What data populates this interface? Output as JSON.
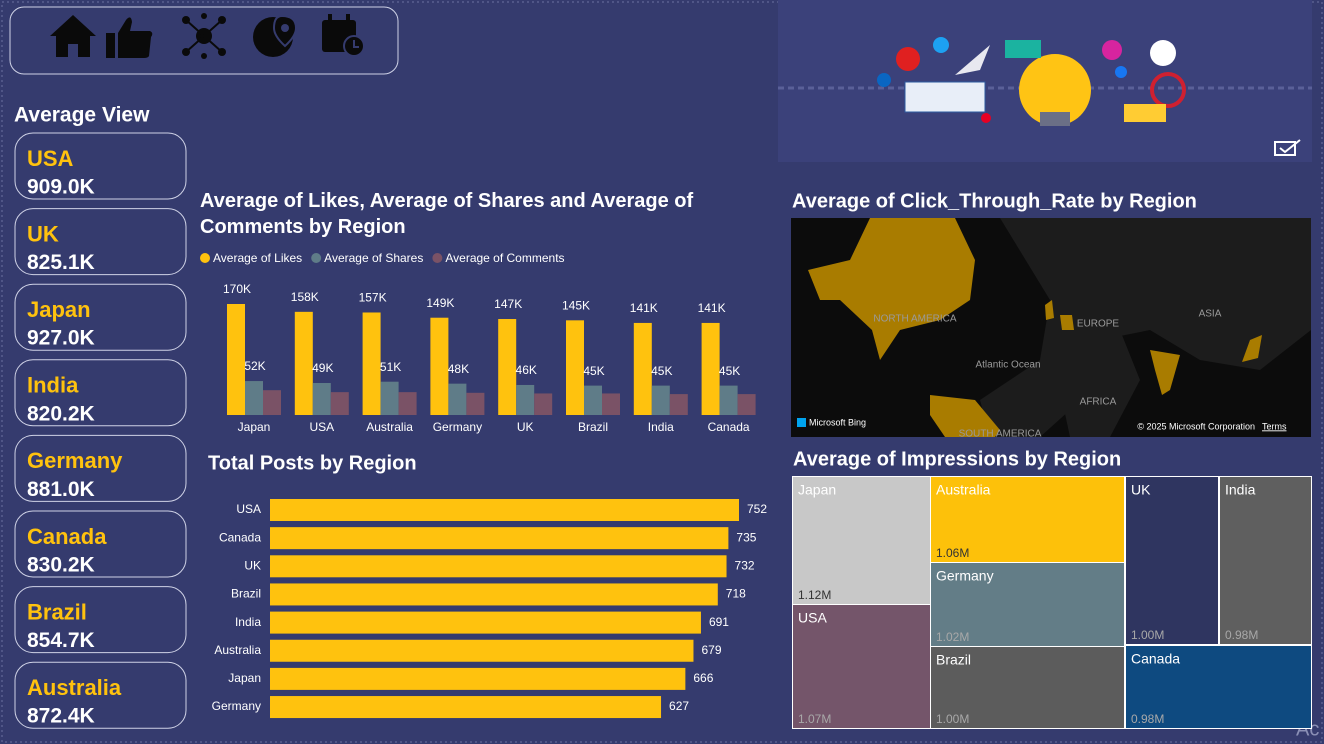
{
  "cards": {
    "title": "Average View",
    "items": [
      {
        "label": "USA",
        "value": "909.0K"
      },
      {
        "label": "UK",
        "value": "825.1K"
      },
      {
        "label": "Japan",
        "value": "927.0K"
      },
      {
        "label": "India",
        "value": "820.2K"
      },
      {
        "label": "Germany",
        "value": "881.0K"
      },
      {
        "label": "Canada",
        "value": "830.2K"
      },
      {
        "label": "Brazil",
        "value": "854.7K"
      },
      {
        "label": "Australia",
        "value": "872.4K"
      }
    ]
  },
  "chart_data": [
    {
      "type": "bar",
      "title": "Average of Likes, Average of Shares and Average of Comments by Region",
      "categories": [
        "Japan",
        "USA",
        "Australia",
        "Germany",
        "UK",
        "Brazil",
        "India",
        "Canada"
      ],
      "series": [
        {
          "name": "Average of Likes",
          "color": "#ffc20e",
          "values": [
            170000,
            158000,
            157000,
            149000,
            147000,
            145000,
            141000,
            141000
          ],
          "value_labels": [
            "170K",
            "158K",
            "157K",
            "149K",
            "147K",
            "145K",
            "141K",
            "141K"
          ]
        },
        {
          "name": "Average of Shares",
          "color": "#5f7c88",
          "values": [
            52000,
            49000,
            51000,
            48000,
            46000,
            45000,
            45000,
            45000
          ],
          "value_labels": [
            "52K",
            "49K",
            "51K",
            "48K",
            "46K",
            "45K",
            "45K",
            "45K"
          ]
        },
        {
          "name": "Average of Comments",
          "color": "#7a5266",
          "values": [
            38000,
            35000,
            35000,
            34000,
            33000,
            33000,
            32000,
            32000
          ]
        }
      ]
    },
    {
      "type": "barh",
      "title": "Total Posts by Region",
      "color": "#ffc20e",
      "categories": [
        "USA",
        "Canada",
        "UK",
        "Brazil",
        "India",
        "Australia",
        "Japan",
        "Germany"
      ],
      "values": [
        752,
        735,
        732,
        718,
        691,
        679,
        666,
        627
      ]
    },
    {
      "type": "map",
      "title": "Average of Click_Through_Rate by Region",
      "labels": [
        "NORTH AMERICA",
        "EUROPE",
        "ASIA",
        "Atlantic Ocean",
        "AFRICA",
        "SOUTH AMERICA"
      ],
      "provider": "Microsoft Bing",
      "copyright": "© 2025 Microsoft Corporation",
      "terms": "Terms"
    },
    {
      "type": "treemap",
      "title": "Average of Impressions by Region",
      "categories": [
        "Japan",
        "USA",
        "Australia",
        "Germany",
        "Brazil",
        "UK",
        "India",
        "Canada"
      ],
      "values": [
        1120000,
        1070000,
        1060000,
        1020000,
        1000000,
        1000000,
        980000,
        980000
      ],
      "value_labels": [
        "1.12M",
        "1.07M",
        "1.06M",
        "1.02M",
        "1.00M",
        "1.00M",
        "0.98M",
        "0.98M"
      ],
      "colors": [
        "#c8c8c8",
        "#74556a",
        "#fdc10a",
        "#637d87",
        "#5c5c5c",
        "#2f3560",
        "#5f5f5f",
        "#0e4a80"
      ]
    }
  ],
  "watermark": "Ac"
}
